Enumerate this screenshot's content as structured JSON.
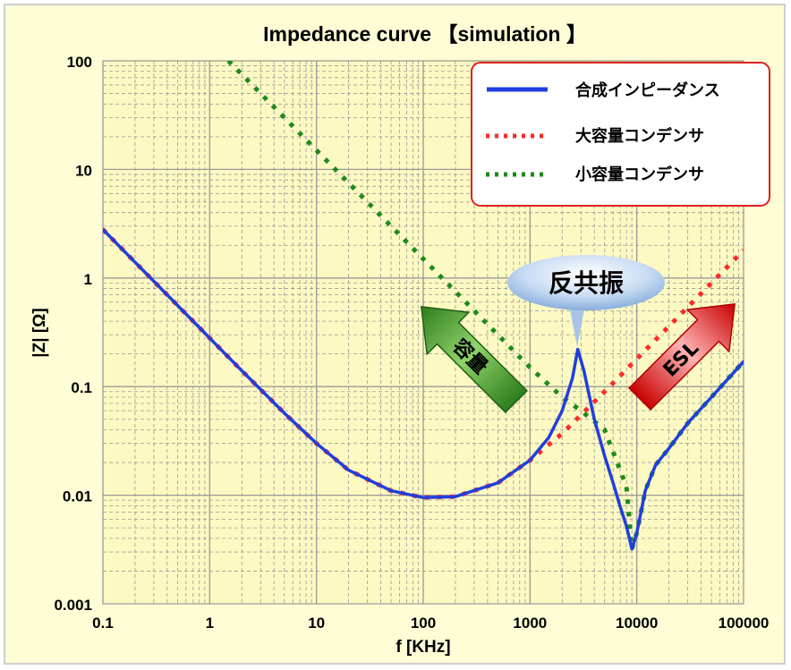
{
  "chart_data": {
    "type": "line",
    "title": "Impedance curve 【simulation 】",
    "xlabel": "f [KHz]",
    "ylabel": "|Z| [Ω]",
    "x_scale": "log",
    "y_scale": "log",
    "xlim": [
      0.1,
      100000
    ],
    "ylim": [
      0.001,
      100
    ],
    "x_ticks": [
      "0.1",
      "1",
      "10",
      "100",
      "1000",
      "10000",
      "100000"
    ],
    "y_ticks": [
      "100",
      "10",
      "1",
      "0.1",
      "0.01",
      "0.001"
    ],
    "grid": true,
    "legend_position": "top-right",
    "series": [
      {
        "name": "合成インピーダンス",
        "style": "solid",
        "color": "#1f3fdc",
        "x": [
          0.1,
          0.2,
          0.5,
          1,
          2,
          5,
          10,
          20,
          50,
          100,
          200,
          500,
          1000,
          1500,
          2000,
          2500,
          2800,
          3200,
          4000,
          5000,
          6000,
          7000,
          8000,
          9000,
          10000,
          12000,
          15000,
          20000,
          30000,
          50000,
          100000
        ],
        "y": [
          2.8,
          1.4,
          0.56,
          0.28,
          0.14,
          0.057,
          0.03,
          0.017,
          0.011,
          0.0095,
          0.0097,
          0.013,
          0.021,
          0.034,
          0.06,
          0.12,
          0.22,
          0.14,
          0.05,
          0.023,
          0.013,
          0.0078,
          0.0052,
          0.0032,
          0.0045,
          0.011,
          0.019,
          0.027,
          0.046,
          0.08,
          0.17
        ]
      },
      {
        "name": "大容量コンデンサ",
        "style": "dotted",
        "color": "#ff2a2a",
        "x": [
          0.1,
          0.2,
          0.5,
          1,
          2,
          5,
          10,
          20,
          50,
          100,
          200,
          500,
          1000,
          2000,
          5000,
          10000,
          20000,
          50000,
          100000
        ],
        "y": [
          2.8,
          1.4,
          0.56,
          0.28,
          0.14,
          0.057,
          0.03,
          0.017,
          0.011,
          0.0095,
          0.0097,
          0.013,
          0.021,
          0.037,
          0.09,
          0.18,
          0.36,
          0.9,
          1.8
        ]
      },
      {
        "name": "小容量コンデンサ",
        "style": "dotted",
        "color": "#1e8a1e",
        "x": [
          1.5,
          3,
          10,
          30,
          100,
          300,
          1000,
          2000,
          3000,
          5000,
          8000,
          9000,
          10000,
          12000,
          15000,
          20000,
          30000,
          50000,
          100000
        ],
        "y": [
          100,
          50,
          15,
          5,
          1.5,
          0.5,
          0.15,
          0.08,
          0.06,
          0.04,
          0.012,
          0.0032,
          0.0045,
          0.011,
          0.019,
          0.027,
          0.046,
          0.08,
          0.17
        ]
      }
    ],
    "annotations": {
      "resonance_label": "反共振",
      "resonance_at": [
        2800,
        0.22
      ],
      "capacitance_arrow_label": "容量",
      "esl_arrow_label": "ESL"
    }
  }
}
